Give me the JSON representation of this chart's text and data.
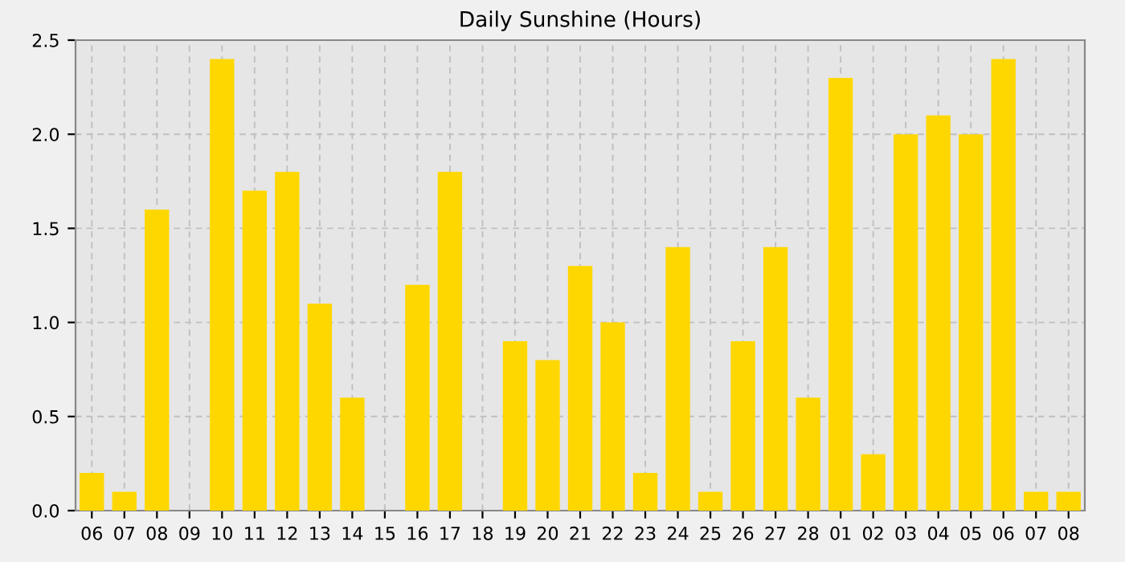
{
  "chart_data": {
    "type": "bar",
    "title": "Daily Sunshine (Hours)",
    "categories": [
      "06",
      "07",
      "08",
      "09",
      "10",
      "11",
      "12",
      "13",
      "14",
      "15",
      "16",
      "17",
      "18",
      "19",
      "20",
      "21",
      "22",
      "23",
      "24",
      "25",
      "26",
      "27",
      "28",
      "01",
      "02",
      "03",
      "04",
      "05",
      "06",
      "07",
      "08"
    ],
    "values": [
      0.2,
      0.1,
      1.6,
      0,
      2.4,
      1.7,
      1.8,
      1.1,
      0.6,
      0,
      1.2,
      1.8,
      0,
      0.9,
      0.8,
      1.3,
      1.0,
      0.2,
      1.4,
      0.1,
      0.9,
      1.4,
      0.6,
      2.3,
      0.3,
      2.0,
      2.1,
      2.0,
      2.4,
      0.1,
      0.1
    ],
    "color": "#ffd700",
    "ylim": [
      0,
      2.5
    ],
    "yticks": [
      {
        "value": 0,
        "label": "0.0"
      },
      {
        "value": 0.5,
        "label": "0.5"
      },
      {
        "value": 1,
        "label": "1.0"
      },
      {
        "value": 1.5,
        "label": "1.5"
      },
      {
        "value": 2,
        "label": "2.0"
      },
      {
        "value": 2.5,
        "label": "2.5"
      }
    ],
    "grid": true
  }
}
